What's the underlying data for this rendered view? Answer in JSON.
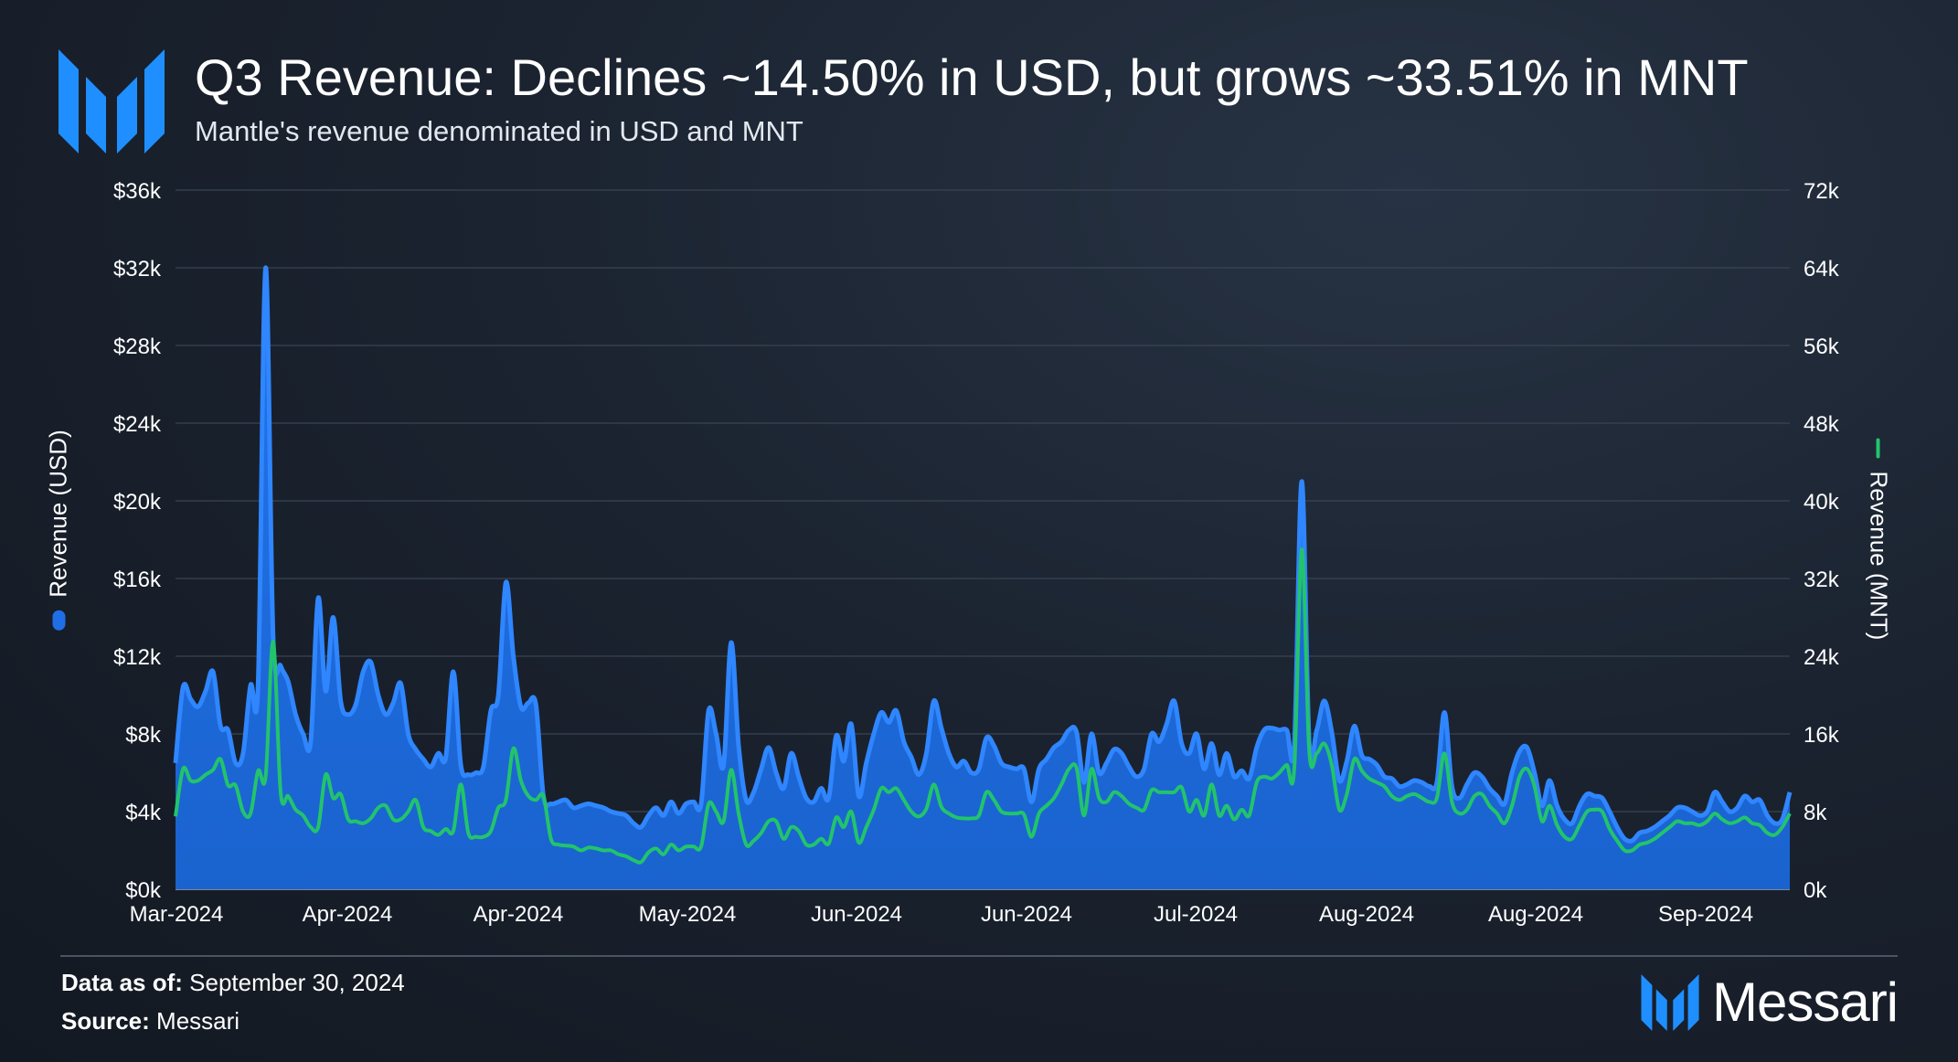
{
  "header": {
    "title": "Q3 Revenue: Declines ~14.50% in USD, but grows ~33.51% in MNT",
    "subtitle": "Mantle's revenue denominated in USD and MNT"
  },
  "colors": {
    "usd_fill": "#1f6ee5",
    "usd_line": "#2f86ff",
    "mnt_line": "#22c46b",
    "brand": "#1f8fff"
  },
  "chart_data": {
    "type": "area",
    "title": "Q3 Revenue: Declines ~14.50% in USD, but grows ~33.51% in MNT",
    "xlabel": "",
    "ylabel": "Revenue (USD)",
    "y2label": "Revenue (MNT)",
    "ylim": [
      0,
      36000
    ],
    "y2lim": [
      0,
      72000
    ],
    "grid": true,
    "left_ticks": [
      "$0k",
      "$4k",
      "$8k",
      "$12k",
      "$16k",
      "$20k",
      "$24k",
      "$28k",
      "$32k",
      "$36k"
    ],
    "right_ticks": [
      "0k",
      "8k",
      "16k",
      "24k",
      "32k",
      "40k",
      "48k",
      "56k",
      "64k",
      "72k"
    ],
    "x_ticks": [
      "Mar-2024",
      "Apr-2024",
      "Apr-2024",
      "May-2024",
      "Jun-2024",
      "Jun-2024",
      "Jul-2024",
      "Aug-2024",
      "Aug-2024",
      "Sep-2024"
    ],
    "series": [
      {
        "name": "Revenue (USD)",
        "axis": "left",
        "style": "area",
        "values": [
          6500,
          10400,
          9800,
          9400,
          10200,
          11200,
          8400,
          8200,
          6500,
          7000,
          10500,
          10600,
          32000,
          13000,
          11500,
          10700,
          9000,
          8000,
          7600,
          15000,
          10200,
          14000,
          9700,
          9000,
          9500,
          11200,
          11700,
          10000,
          9000,
          9600,
          10600,
          8000,
          7200,
          6700,
          6300,
          7000,
          6800,
          11200,
          6400,
          5900,
          6000,
          6300,
          9200,
          10000,
          15800,
          12000,
          9400,
          9600,
          9500,
          4800,
          4400,
          4500,
          4600,
          4200,
          4300,
          4400,
          4300,
          4200,
          4000,
          3900,
          3800,
          3400,
          3200,
          3800,
          4200,
          3800,
          4500,
          3900,
          4400,
          4500,
          4400,
          9200,
          8000,
          6400,
          12700,
          7400,
          4600,
          5000,
          6200,
          7300,
          6000,
          5200,
          7000,
          5800,
          4700,
          4500,
          5200,
          4700,
          7900,
          6600,
          8500,
          4800,
          6500,
          8000,
          9100,
          8600,
          9200,
          7600,
          6800,
          5900,
          7000,
          9700,
          8300,
          7000,
          6300,
          6600,
          6000,
          6200,
          7800,
          7400,
          6500,
          6300,
          6200,
          6200,
          4500,
          6200,
          6700,
          7300,
          7600,
          8200,
          8100,
          5500,
          8000,
          6000,
          6500,
          7200,
          7000,
          6300,
          5800,
          6200,
          8000,
          7600,
          8500,
          9700,
          7500,
          7000,
          8000,
          6200,
          7500,
          5900,
          7000,
          5800,
          6100,
          5700,
          7300,
          8200,
          8300,
          8200,
          8200,
          7400,
          21000,
          7500,
          8200,
          9700,
          8100,
          5600,
          6600,
          8400,
          6900,
          6700,
          6400,
          5800,
          5700,
          5300,
          5400,
          5600,
          5500,
          5300,
          5500,
          9100,
          5300,
          4700,
          5400,
          6000,
          5800,
          5200,
          4800,
          4400,
          6000,
          7100,
          7300,
          6000,
          4300,
          5600,
          4300,
          3600,
          3400,
          4300,
          4900,
          4800,
          4700,
          4000,
          3200,
          2600,
          2500,
          2900,
          3000,
          3200,
          3500,
          3800,
          4200,
          4200,
          4000,
          3800,
          4000,
          5000,
          4500,
          4000,
          4200,
          4800,
          4500,
          4600,
          3800,
          3400,
          3600,
          5000
        ]
      },
      {
        "name": "Revenue (MNT)",
        "axis": "right",
        "style": "line",
        "values": [
          7500,
          12400,
          11200,
          11200,
          11800,
          12300,
          13400,
          10700,
          10700,
          8000,
          7800,
          12200,
          11600,
          25500,
          10000,
          9600,
          8200,
          7600,
          6400,
          6400,
          11800,
          9400,
          9800,
          7200,
          7000,
          6800,
          7300,
          8400,
          8600,
          7200,
          7200,
          8000,
          9200,
          6400,
          6000,
          5600,
          6200,
          6000,
          10800,
          5800,
          5400,
          5400,
          6000,
          8400,
          9200,
          14500,
          11200,
          9600,
          9200,
          9600,
          5200,
          4600,
          4500,
          4400,
          4000,
          4300,
          4200,
          4000,
          4000,
          3600,
          3400,
          3000,
          2800,
          3800,
          4200,
          3600,
          4600,
          4000,
          4400,
          4400,
          4400,
          8800,
          8000,
          7000,
          12300,
          7800,
          4600,
          5000,
          5800,
          7000,
          7000,
          5200,
          6400,
          6000,
          4600,
          4600,
          5200,
          4700,
          7400,
          6400,
          8000,
          4800,
          6400,
          8200,
          10400,
          10000,
          10400,
          9200,
          8000,
          7500,
          8300,
          10800,
          8500,
          7800,
          7400,
          7300,
          7300,
          7600,
          10000,
          9200,
          8000,
          7800,
          7800,
          7700,
          5400,
          7800,
          8600,
          9400,
          10800,
          12400,
          12500,
          7600,
          12400,
          9400,
          9000,
          10000,
          9600,
          8800,
          8400,
          8200,
          10200,
          10000,
          10000,
          10000,
          10500,
          8000,
          9200,
          7600,
          10800,
          7600,
          8600,
          7200,
          8200,
          7600,
          11000,
          11600,
          11400,
          12000,
          12800,
          12400,
          35000,
          14200,
          14000,
          15000,
          12800,
          8200,
          9800,
          13400,
          12200,
          11400,
          11000,
          10600,
          9600,
          9200,
          9600,
          9800,
          9400,
          9000,
          9400,
          14000,
          9000,
          7800,
          8200,
          9600,
          9800,
          8600,
          7800,
          6800,
          8600,
          11600,
          12400,
          10600,
          7000,
          8600,
          6600,
          5400,
          5200,
          6600,
          8000,
          8200,
          8000,
          6200,
          5000,
          4000,
          4000,
          4600,
          4800,
          5200,
          5800,
          6400,
          7000,
          6800,
          6800,
          6600,
          7000,
          7800,
          7200,
          6800,
          7000,
          7400,
          6800,
          6600,
          5800,
          5600,
          6400,
          7800
        ]
      }
    ]
  },
  "footer": {
    "data_as_of_label": "Data as of:",
    "data_as_of_value": " September 30, 2024",
    "source_label": "Source:",
    "source_value": " Messari",
    "brand_name": "Messari"
  }
}
